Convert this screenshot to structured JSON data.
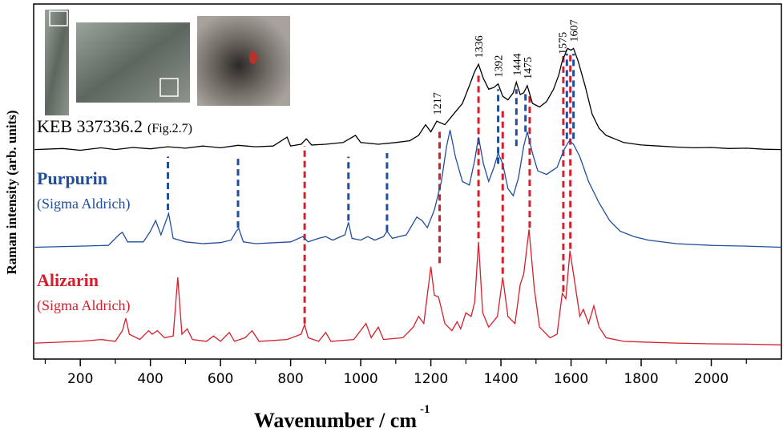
{
  "chart_data": {
    "type": "line",
    "y_label": "Raman intensity (arb. units)",
    "x_label": "Wavenumber / cm",
    "x_label_sup": "-1",
    "xlim": [
      67,
      2200
    ],
    "ylim": [
      0,
      100
    ],
    "xticks": [
      200,
      400,
      600,
      800,
      1000,
      1200,
      1400,
      1600,
      1800,
      2000
    ],
    "x_minor_ticks": [
      100,
      300,
      500,
      700,
      900,
      1100,
      1300,
      1500,
      1700,
      1900,
      2100
    ],
    "series": [
      {
        "name": "KEB 337336.2",
        "note": "(Fig.2.7)",
        "color": "#000000",
        "x": [
          70,
          150,
          200,
          260,
          300,
          350,
          400,
          450,
          500,
          550,
          600,
          650,
          700,
          750,
          790,
          800,
          830,
          845,
          860,
          900,
          950,
          985,
          1000,
          1050,
          1100,
          1140,
          1165,
          1185,
          1200,
          1217,
          1240,
          1265,
          1290,
          1310,
          1325,
          1336,
          1350,
          1365,
          1380,
          1392,
          1405,
          1420,
          1435,
          1444,
          1455,
          1465,
          1475,
          1490,
          1510,
          1530,
          1550,
          1565,
          1575,
          1590,
          1600,
          1607,
          1620,
          1640,
          1660,
          1680,
          1700,
          1750,
          1800,
          1850,
          1900,
          1950,
          2000,
          2050,
          2100,
          2150,
          2200
        ],
        "values": [
          59,
          59.3,
          58.8,
          59.5,
          59,
          59.6,
          59.2,
          59.8,
          59.4,
          60,
          59.5,
          60.2,
          59.8,
          60,
          62.5,
          60,
          60.5,
          62,
          60.3,
          60.5,
          61,
          63,
          61,
          60.5,
          61,
          61.5,
          63,
          66,
          64,
          67,
          66,
          69,
          72,
          77,
          81,
          83,
          79,
          76,
          76.5,
          77.5,
          74,
          73,
          75,
          78,
          74.5,
          75,
          77,
          72,
          71,
          72.5,
          76,
          80,
          84,
          87.5,
          87,
          87.5,
          84,
          77,
          69,
          65,
          63,
          61,
          60.3,
          60,
          59.7,
          59.5,
          59.6,
          59.3,
          59.4,
          59.1,
          59
        ]
      },
      {
        "name": "Purpurin",
        "note": "(Sigma Aldrich)",
        "color": "#1f4e9c",
        "x": [
          70,
          200,
          280,
          310,
          320,
          335,
          380,
          400,
          415,
          430,
          445,
          452,
          465,
          500,
          550,
          600,
          630,
          645,
          652,
          665,
          700,
          760,
          800,
          835,
          850,
          880,
          900,
          920,
          955,
          965,
          975,
          1000,
          1020,
          1040,
          1065,
          1075,
          1090,
          1130,
          1160,
          1175,
          1190,
          1210,
          1230,
          1245,
          1255,
          1270,
          1290,
          1310,
          1325,
          1336,
          1350,
          1365,
          1380,
          1392,
          1405,
          1420,
          1435,
          1450,
          1465,
          1475,
          1490,
          1505,
          1530,
          1560,
          1580,
          1595,
          1607,
          1625,
          1650,
          1680,
          1710,
          1740,
          1780,
          1820,
          1900,
          2000,
          2100,
          2200
        ],
        "values": [
          31.5,
          31.8,
          32,
          35,
          35.7,
          33,
          33,
          36,
          39,
          35,
          39,
          41,
          34,
          33,
          32.5,
          32.8,
          33.5,
          36,
          36.8,
          33,
          32.5,
          32.8,
          33,
          34.5,
          33,
          34,
          34.5,
          33.5,
          35,
          38.5,
          34,
          33.5,
          34.5,
          33.5,
          34.5,
          36,
          34,
          35,
          40,
          39,
          37,
          42,
          50,
          60,
          64.5,
          57,
          50,
          49,
          56,
          62.5,
          55,
          50,
          54,
          58,
          55,
          48,
          46,
          51,
          60,
          64,
          58,
          53,
          52,
          54,
          59,
          61.5,
          60.5,
          57,
          50,
          44,
          39,
          36,
          34.5,
          33.5,
          32.5,
          32,
          31.8,
          31.5
        ]
      },
      {
        "name": "Alizarin",
        "note": "(Sigma Aldrich)",
        "color": "#d4202c",
        "x": [
          70,
          200,
          260,
          300,
          320,
          330,
          340,
          370,
          395,
          405,
          420,
          440,
          465,
          478,
          490,
          505,
          520,
          560,
          580,
          600,
          625,
          640,
          670,
          690,
          710,
          790,
          830,
          840,
          850,
          880,
          900,
          915,
          980,
          1015,
          1030,
          1050,
          1065,
          1120,
          1150,
          1165,
          1180,
          1200,
          1210,
          1222,
          1240,
          1260,
          1275,
          1285,
          1300,
          1315,
          1325,
          1336,
          1348,
          1365,
          1390,
          1405,
          1420,
          1440,
          1455,
          1465,
          1480,
          1495,
          1510,
          1540,
          1560,
          1575,
          1585,
          1597,
          1610,
          1625,
          1635,
          1650,
          1665,
          1680,
          1700,
          1750,
          1800,
          1900,
          2000,
          2100,
          2200
        ],
        "values": [
          4.5,
          5,
          5.5,
          5,
          8,
          11.5,
          7,
          5.5,
          8,
          7,
          8,
          6,
          6.5,
          23,
          7,
          8.5,
          5.5,
          5,
          6.5,
          5,
          7.5,
          5,
          6,
          8,
          5,
          5.5,
          7,
          9.7,
          6,
          5,
          7.5,
          5,
          5.5,
          10,
          6,
          9,
          5.5,
          6,
          9,
          12,
          10,
          26,
          18,
          17.5,
          10,
          8,
          10.5,
          8.5,
          13,
          12,
          16,
          33,
          13,
          9,
          12,
          23,
          12,
          10,
          21,
          24,
          36.5,
          20,
          9,
          6,
          7,
          18.5,
          17,
          30.5,
          22,
          12,
          14,
          10,
          15,
          9,
          6,
          5,
          4.8,
          4.5,
          4.3,
          4.2,
          4
        ]
      }
    ],
    "peak_labels": [
      1217,
      1336,
      1392,
      1444,
      1475,
      1575,
      1607
    ],
    "marker_lines": [
      {
        "x": 450,
        "color": "#1f4e9c",
        "range": [
          42,
          57
        ]
      },
      {
        "x": 650,
        "color": "#1f4e9c",
        "range": [
          37,
          57
        ]
      },
      {
        "x": 840,
        "color": "#d4202c",
        "range": [
          10,
          60
        ]
      },
      {
        "x": 965,
        "color": "#1f4e9c",
        "range": [
          39,
          57
        ]
      },
      {
        "x": 1075,
        "color": "#1f4e9c",
        "range": [
          36,
          58
        ]
      },
      {
        "x": 1225,
        "color": "#d4202c",
        "range": [
          27,
          64
        ]
      },
      {
        "x": 1336,
        "color": "#d4202c",
        "range": [
          34,
          80
        ]
      },
      {
        "x": 1392,
        "color": "#1f4e9c",
        "range": [
          55,
          76
        ]
      },
      {
        "x": 1405,
        "color": "#d4202c",
        "range": [
          24,
          70
        ]
      },
      {
        "x": 1444,
        "color": "#1f4e9c",
        "range": [
          60,
          76
        ]
      },
      {
        "x": 1470,
        "color": "#1f4e9c",
        "range": [
          64,
          75
        ]
      },
      {
        "x": 1482,
        "color": "#d4202c",
        "range": [
          37,
          74
        ]
      },
      {
        "x": 1578,
        "color": "#d4202c",
        "range": [
          19,
          86
        ]
      },
      {
        "x": 1588,
        "color": "#1f4e9c",
        "range": [
          62,
          86
        ]
      },
      {
        "x": 1598,
        "color": "#d4202c",
        "range": [
          31,
          86
        ]
      },
      {
        "x": 1607,
        "color": "#1f4e9c",
        "range": [
          62,
          86
        ]
      }
    ]
  }
}
